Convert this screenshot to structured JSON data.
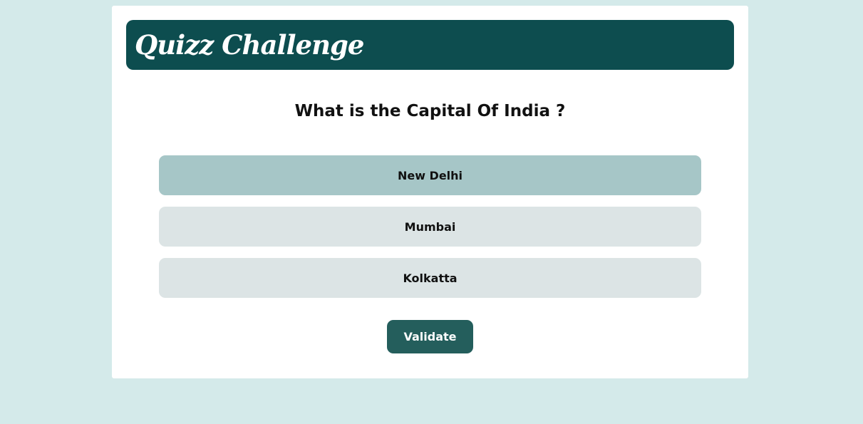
{
  "header": {
    "title": "Quizz Challenge"
  },
  "quiz": {
    "question": "What is the Capital Of India ?",
    "answers": [
      {
        "label": "New Delhi",
        "selected": true
      },
      {
        "label": "Mumbai",
        "selected": false
      },
      {
        "label": "Kolkatta",
        "selected": false
      }
    ],
    "validate_label": "Validate"
  },
  "colors": {
    "background": "#d4eaea",
    "header": "#0d4d4f",
    "answer_default": "#dce4e5",
    "answer_selected": "#a6c6c7",
    "button": "#245e5c"
  }
}
